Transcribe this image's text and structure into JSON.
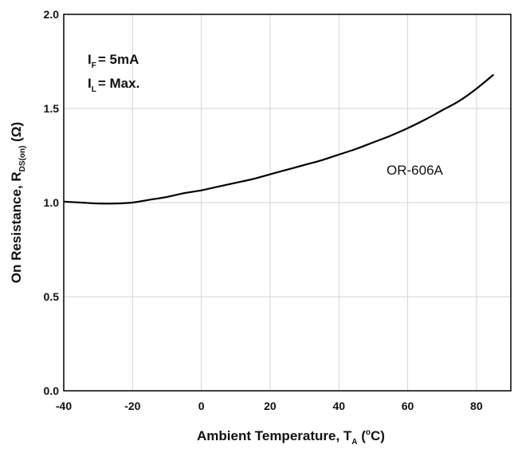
{
  "chart_data": {
    "type": "line",
    "xlabel": {
      "main": "Ambient Temperature, T",
      "sub": "A",
      "unit_open": " (",
      "unit_sup": "o",
      "unit_close": "C)"
    },
    "ylabel": {
      "main": "On Resistance, R",
      "sub": "DS(on)",
      "unit": " (Ω)"
    },
    "xlim": [
      -40,
      90
    ],
    "ylim": [
      0.0,
      2.0
    ],
    "xticks": [
      -40,
      -20,
      0,
      20,
      40,
      60,
      80
    ],
    "xtick_labels": [
      "-40",
      "-20",
      "0",
      "20",
      "40",
      "60",
      "80"
    ],
    "yticks": [
      0.0,
      0.5,
      1.0,
      1.5,
      2.0
    ],
    "ytick_labels": [
      "0.0",
      "0.5",
      "1.0",
      "1.5",
      "2.0"
    ],
    "grid": true,
    "annotations": [
      {
        "main": "I",
        "sub": "F",
        "rest": "= 5mA"
      },
      {
        "main": "I",
        "sub": "L",
        "rest": "= Max."
      }
    ],
    "series": [
      {
        "name": "OR-606A",
        "x": [
          -40,
          -35,
          -30,
          -25,
          -20,
          -15,
          -10,
          -5,
          0,
          5,
          10,
          15,
          20,
          25,
          30,
          35,
          40,
          45,
          50,
          55,
          60,
          65,
          70,
          75,
          80,
          85
        ],
        "y": [
          1.005,
          1.0,
          0.995,
          0.995,
          1.0,
          1.015,
          1.03,
          1.05,
          1.065,
          1.085,
          1.105,
          1.125,
          1.15,
          1.175,
          1.2,
          1.225,
          1.255,
          1.285,
          1.32,
          1.355,
          1.395,
          1.44,
          1.49,
          1.54,
          1.605,
          1.68
        ]
      }
    ]
  }
}
